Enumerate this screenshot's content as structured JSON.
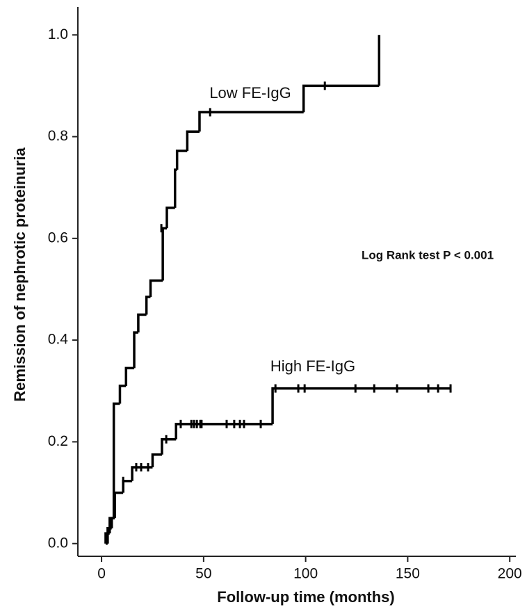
{
  "chart_data": {
    "type": "step",
    "x_label": "Follow-up time (months)",
    "y_label": "Remission of nephrotic proteinuria",
    "xlim": [
      -11.6,
      203
    ],
    "ylim": [
      -0.025,
      1.055
    ],
    "xticks": [
      0,
      50,
      100,
      150,
      200
    ],
    "yticks": [
      {
        "value": 0,
        "label": "0.0"
      },
      0.2,
      0.4,
      0.6,
      0.8,
      {
        "value": 1,
        "label": "1.0"
      }
    ],
    "color": "#000000",
    "series": [
      {
        "name": "Low FE-IgG",
        "x": [
          2,
          2,
          3,
          4,
          6,
          9,
          12,
          16,
          18,
          22,
          24,
          30,
          32,
          36,
          37,
          42,
          48,
          99,
          136
        ],
        "values": [
          0,
          0.02,
          0.03,
          0.05,
          0.275,
          0.31,
          0.345,
          0.415,
          0.45,
          0.485,
          0.517,
          0.62,
          0.66,
          0.735,
          0.772,
          0.81,
          0.848,
          0.9,
          1.0
        ],
        "censored_x": [
          29.3,
          53.2,
          109.4
        ],
        "censored_values": [
          0.62,
          0.848,
          0.9
        ]
      },
      {
        "name": "High FE-IgG",
        "x": [
          2,
          3,
          4,
          5,
          6.5,
          10.6,
          15,
          25,
          29.6,
          36.5,
          83.8
        ],
        "values": [
          0,
          0.02,
          0.03,
          0.05,
          0.1,
          0.123,
          0.15,
          0.175,
          0.205,
          0.235,
          0.305
        ],
        "censored_x": [
          10.6,
          17,
          19.4,
          22.8,
          31.7,
          38.8,
          44,
          45.3,
          46.7,
          48.4,
          49,
          61.3,
          65,
          67.8,
          69.8,
          78,
          85.2,
          96.4,
          99.5,
          124.4,
          133.6,
          144.8,
          160.1,
          164.9,
          171
        ],
        "censored_values": [
          0.123,
          0.15,
          0.15,
          0.15,
          0.205,
          0.235,
          0.235,
          0.235,
          0.235,
          0.235,
          0.235,
          0.235,
          0.235,
          0.235,
          0.235,
          0.235,
          0.305,
          0.305,
          0.305,
          0.305,
          0.305,
          0.305,
          0.305,
          0.305,
          0.305
        ]
      }
    ],
    "annotations": [
      {
        "text": "Low FE-IgG"
      },
      {
        "text": "High FE-IgG"
      },
      {
        "text": "Log Rank test P < 0.001"
      }
    ]
  }
}
